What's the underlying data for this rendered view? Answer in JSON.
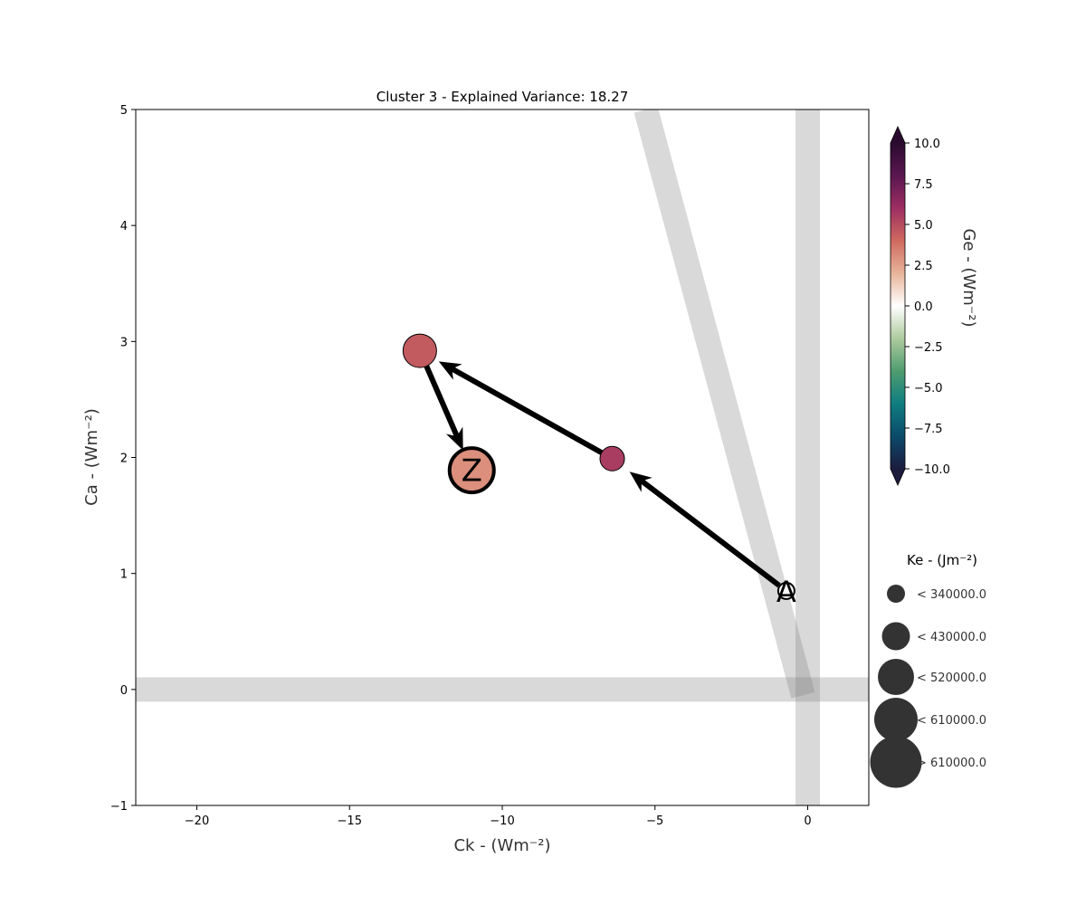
{
  "chart_data": {
    "type": "scatter",
    "title": "Cluster 3 - Explained Variance: 18.27",
    "xlabel": "Ck - (Wm⁻²)",
    "ylabel": "Ca - (Wm⁻²)",
    "xlim": [
      -22,
      2
    ],
    "ylim": [
      -1,
      5
    ],
    "xticks": [
      -20,
      -15,
      -10,
      -5,
      0
    ],
    "xtick_labels": [
      "−20",
      "−15",
      "−10",
      "−5",
      "0"
    ],
    "yticks": [
      -1,
      0,
      1,
      2,
      3,
      4,
      5
    ],
    "ytick_labels": [
      "−1",
      "0",
      "1",
      "2",
      "3",
      "4",
      "5"
    ],
    "grid": false,
    "reference_bands": [
      {
        "kind": "horizontal",
        "at": 0
      },
      {
        "kind": "vertical",
        "at": 0
      },
      {
        "kind": "diagonal",
        "from": [
          -5.3,
          5.0
        ],
        "to": [
          -0.15,
          -0.05
        ]
      }
    ],
    "points": [
      {
        "x": -0.7,
        "y": 0.85,
        "ge": 0.0,
        "ke_class": 1,
        "label": "A"
      },
      {
        "x": -6.4,
        "y": 1.99,
        "ge": 5.5,
        "ke_class": 0,
        "label": ""
      },
      {
        "x": -12.7,
        "y": 2.92,
        "ge": 4.5,
        "ke_class": 1,
        "label": ""
      },
      {
        "x": -11.0,
        "y": 1.89,
        "ge": 3.0,
        "ke_class": 2,
        "label": "Z"
      }
    ],
    "colorbar": {
      "label": "Ge - (Wm⁻²)",
      "min": -10,
      "max": 10,
      "ticks": [
        -10,
        -7.5,
        -5,
        -2.5,
        0,
        2.5,
        5,
        7.5,
        10
      ],
      "tick_labels": [
        "−10.0",
        "−7.5",
        "−5.0",
        "−2.5",
        "0.0",
        "2.5",
        "5.0",
        "7.5",
        "10.0"
      ],
      "colormap": [
        "#1c1c3f",
        "#0b4a6b",
        "#0f7d80",
        "#4f9c6f",
        "#aecb9e",
        "#ffffff",
        "#e8b49a",
        "#cf6a5f",
        "#9c2e62",
        "#5a1650",
        "#2a0b2f"
      ]
    },
    "size_legend": {
      "title": "Ke - (Jm⁻²)",
      "entries": [
        "< 340000.0",
        "< 430000.0",
        "< 520000.0",
        "< 610000.0",
        "> 610000.0"
      ],
      "color": "#333333"
    }
  }
}
